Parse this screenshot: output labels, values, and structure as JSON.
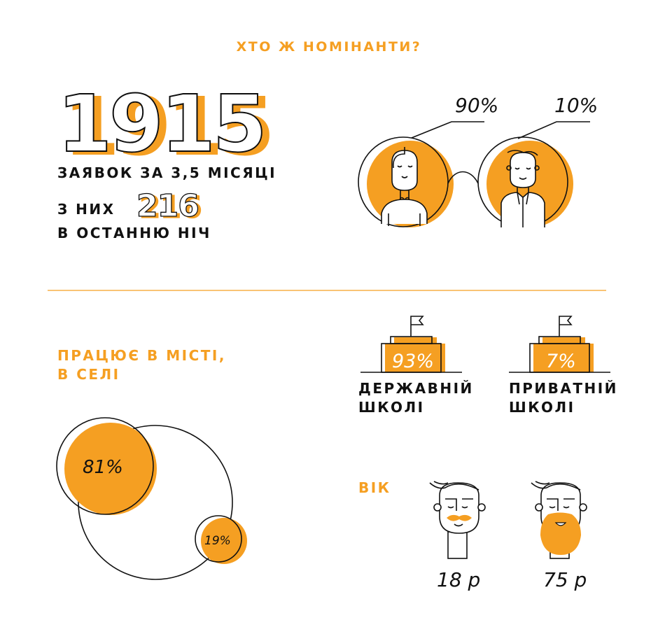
{
  "colors": {
    "accent": "#f59f22",
    "ink": "#111111"
  },
  "title": "ХТО Ж НОМІНАНТИ?",
  "applications": {
    "total": "1915",
    "total_caption": "ЗАЯВОК ЗА 3,5 МІСЯЦІ",
    "of_them_label": "З НИХ",
    "last_night": "216",
    "last_night_caption": "В ОСТАННЮ НІЧ"
  },
  "gender": {
    "female_percent": "90%",
    "male_percent": "10%",
    "female_icon": "woman-portrait-icon",
    "male_icon": "man-portrait-icon"
  },
  "location": {
    "title_line1": "ПРАЦЮЄ В МІСТІ,",
    "title_line2": "В СЕЛІ",
    "city_percent": "81%",
    "village_percent": "19%"
  },
  "schools": {
    "state": {
      "percent": "93%",
      "label_line1": "ДЕРЖАВНІЙ",
      "label_line2": "ШКОЛІ"
    },
    "private": {
      "percent": "7%",
      "label_line1": "ПРИВАТНІЙ",
      "label_line2": "ШКОЛІ"
    },
    "icon": "school-building-flag-icon"
  },
  "age": {
    "title": "ВІК",
    "youngest": "18 р",
    "oldest": "75 р",
    "young_icon": "mustache-man-icon",
    "old_icon": "bearded-man-icon"
  }
}
